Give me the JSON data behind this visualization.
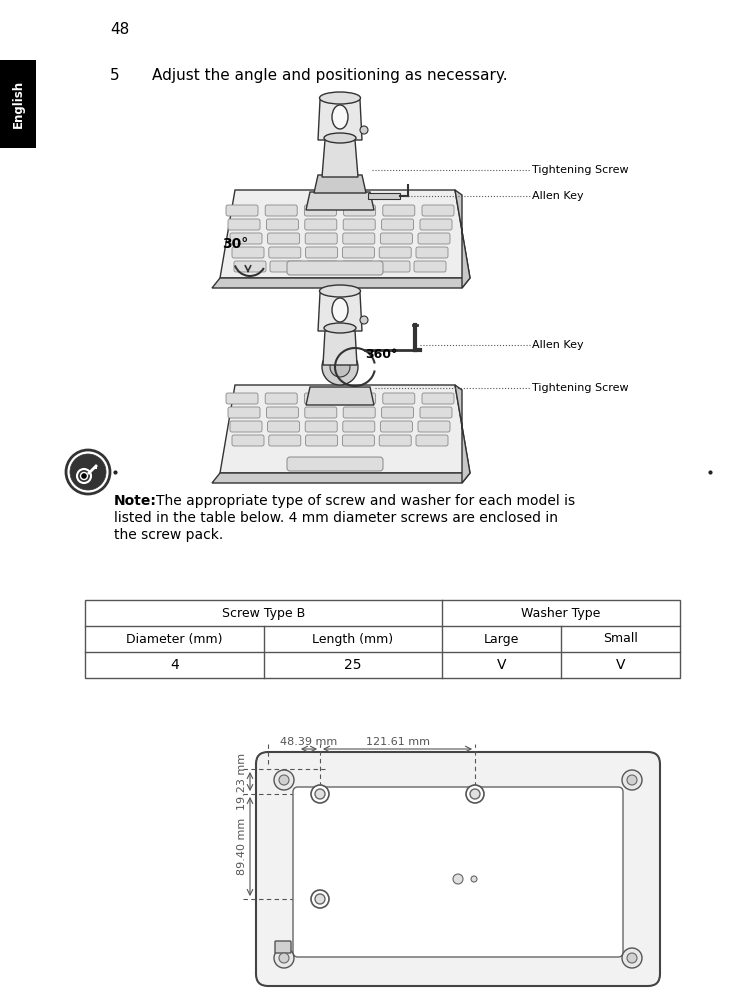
{
  "page_number": "48",
  "language_tab": "English",
  "step_number": "5",
  "step_text": "Adjust the angle and positioning as necessary.",
  "note_text_line1": "The appropriate type of screw and washer for each model is",
  "note_text_line2": "listed in the table below. 4 mm diameter screws are enclosed in",
  "note_text_line3": "the screw pack.",
  "note_bold": "Note:",
  "table_header1": "Screw Type B",
  "table_header2": "Washer Type",
  "table_col1": "Diameter (mm)",
  "table_col2": "Length (mm)",
  "table_col3": "Large",
  "table_col4": "Small",
  "table_val1": "4",
  "table_val2": "25",
  "table_val3": "V",
  "table_val4": "V",
  "angle1": "30°",
  "angle2": "360°",
  "label_tightening1": "Tightening Screw",
  "label_allen1": "Allen Key",
  "label_allen2": "Allen Key",
  "label_tightening2": "Tightening Screw",
  "dim_top1": "48.39 mm",
  "dim_top2": "121.61 mm",
  "dim_left1": "19.23 mm",
  "dim_left2": "89.40 mm",
  "bg_color": "#ffffff",
  "text_color": "#000000",
  "tab_bg": "#000000",
  "tab_text": "#ffffff",
  "table_border_color": "#555555",
  "diag_line_color": "#333333",
  "diag_fill_light": "#f0f0f0",
  "diag_fill_mid": "#d8d8d8",
  "diag_fill_dark": "#b0b0b0",
  "dim_color": "#555555"
}
